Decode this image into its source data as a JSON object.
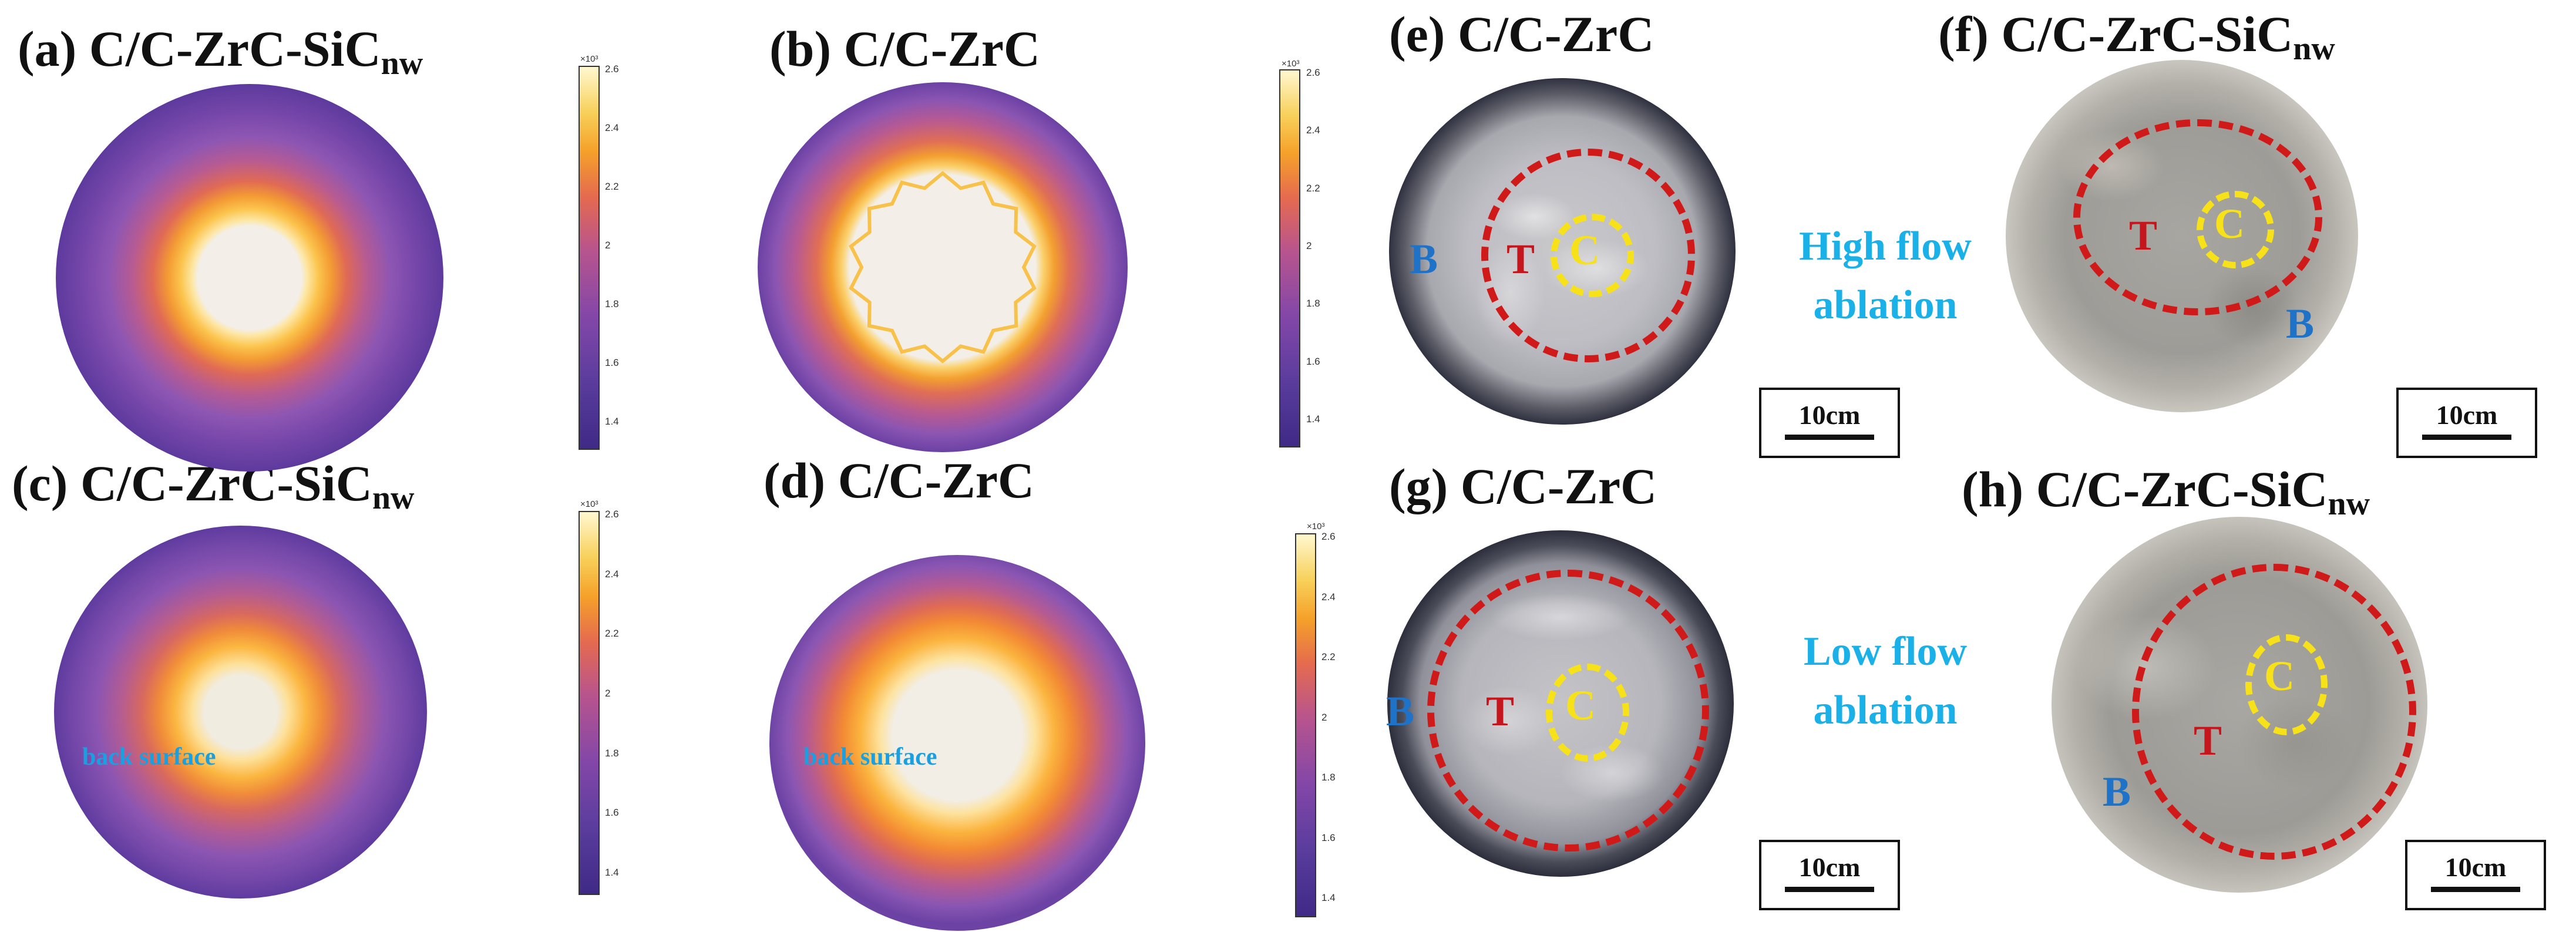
{
  "panels": {
    "a": {
      "label": "(a) C/C-ZrC-SiC",
      "sub": "nw"
    },
    "b": {
      "label": "(b) C/C-ZrC",
      "sub": ""
    },
    "c": {
      "label": "(c) C/C-ZrC-SiC",
      "sub": "nw"
    },
    "d": {
      "label": "(d) C/C-ZrC",
      "sub": ""
    },
    "e": {
      "label": "(e) C/C-ZrC",
      "sub": ""
    },
    "f": {
      "label": "(f) C/C-ZrC-SiC",
      "sub": "nw"
    },
    "g": {
      "label": "(g) C/C-ZrC",
      "sub": ""
    },
    "h": {
      "label": "(h) C/C-ZrC-SiC",
      "sub": "nw"
    }
  },
  "colorbar": {
    "multiplier": "×10³",
    "ticks": [
      "2.6",
      "2.4",
      "2.2",
      "2",
      "1.8",
      "1.6",
      "1.4"
    ],
    "scale": "plasma"
  },
  "back_surface_label": "back surface",
  "flow": {
    "high_line1": "High flow",
    "high_line2": "ablation",
    "low_line1": "Low flow",
    "low_line2": "ablation"
  },
  "zones": {
    "center": "C",
    "transition": "T",
    "border": "B"
  },
  "scale_bar": "10cm",
  "colors": {
    "zone_ring_red": "#d01a1a",
    "zone_ring_yellow": "#f7e21a",
    "letter_red": "#c4161c",
    "letter_blue": "#1e73c8",
    "flow_text": "#1ab0e8",
    "back_surface_text": "#1aa0e0"
  }
}
